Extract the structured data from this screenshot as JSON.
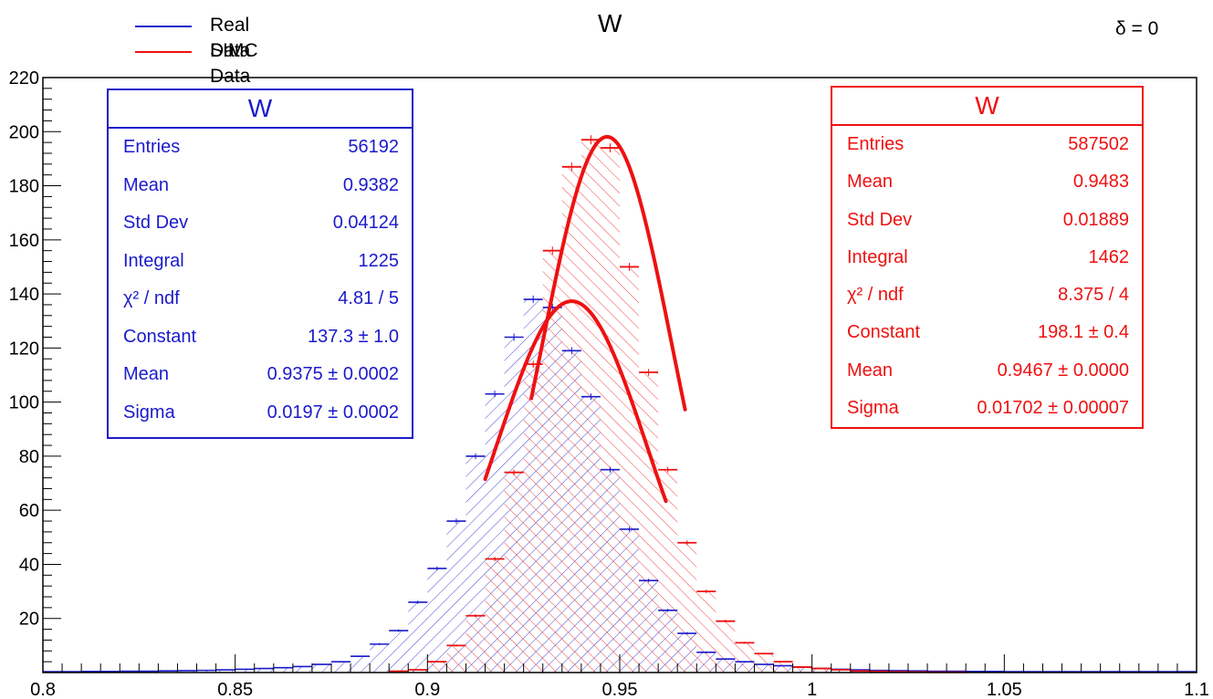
{
  "chart_data": {
    "type": "histogram",
    "title": "W",
    "annotation": "δ = 0",
    "xlim": [
      0.8,
      1.1
    ],
    "ylim": [
      0,
      220
    ],
    "x_ticks": [
      "0.8",
      "0.85",
      "0.9",
      "0.95",
      "1",
      "1.05",
      "1.1"
    ],
    "y_ticks": [
      "20",
      "40",
      "60",
      "80",
      "100",
      "120",
      "140",
      "160",
      "180",
      "200",
      "220"
    ],
    "bin_width": 0.005,
    "legend": [
      {
        "label": "Real Data",
        "color": "#1a1acc"
      },
      {
        "label": "SIMC Data",
        "color": "#ee1111"
      }
    ],
    "series": [
      {
        "name": "Real Data",
        "color": "#1a1acc",
        "bin_centers": [
          0.8025,
          0.8075,
          0.8125,
          0.8175,
          0.8225,
          0.8275,
          0.8325,
          0.8375,
          0.8425,
          0.8475,
          0.8525,
          0.8575,
          0.8625,
          0.8675,
          0.8725,
          0.8775,
          0.8825,
          0.8875,
          0.8925,
          0.8975,
          0.9025,
          0.9075,
          0.9125,
          0.9175,
          0.9225,
          0.9275,
          0.9325,
          0.9375,
          0.9425,
          0.9475,
          0.9525,
          0.9575,
          0.9625,
          0.9675,
          0.9725,
          0.9775,
          0.9825,
          0.9875,
          0.9925,
          0.9975,
          1.0025,
          1.0075,
          1.0125,
          1.0175,
          1.0225,
          1.0275,
          1.0325,
          1.0375,
          1.0425,
          1.0475,
          1.0525,
          1.0575,
          1.0625,
          1.0675,
          1.0725,
          1.0775,
          1.0825,
          1.0875,
          1.0925,
          1.0975
        ],
        "values": [
          0.3,
          0.3,
          0.4,
          0.4,
          0.5,
          0.5,
          0.6,
          0.7,
          0.8,
          1,
          1.2,
          1.5,
          1.8,
          2.2,
          3,
          4,
          6,
          10.5,
          15.5,
          26,
          38.5,
          56,
          80,
          103,
          124,
          138,
          135,
          119,
          102,
          75,
          53,
          34,
          23,
          14.5,
          7.5,
          5,
          4,
          3,
          2.5,
          2,
          1.5,
          1.2,
          1,
          0.8,
          0.7,
          0.6,
          0.5,
          0.5,
          0.4,
          0.4,
          0.3,
          0.3,
          0.3,
          0.3,
          0.3,
          0.3,
          0.3,
          0.3,
          0.3,
          0.3
        ]
      },
      {
        "name": "SIMC Data",
        "color": "#ee1111",
        "bin_centers": [
          0.8925,
          0.8975,
          0.9025,
          0.9075,
          0.9125,
          0.9175,
          0.9225,
          0.9275,
          0.9325,
          0.9375,
          0.9425,
          0.9475,
          0.9525,
          0.9575,
          0.9625,
          0.9675,
          0.9725,
          0.9775,
          0.9825,
          0.9875,
          0.9925,
          0.9975,
          1.0025,
          1.0075,
          1.0125,
          1.0175,
          1.0225,
          1.0275,
          1.0325,
          1.0375
        ],
        "values": [
          0.5,
          1,
          4,
          10,
          21,
          42,
          74,
          114,
          156,
          187,
          197,
          194,
          150,
          111,
          75,
          48,
          30,
          19,
          11,
          7,
          4,
          2,
          1.5,
          1,
          0.6,
          0.4,
          0.3,
          0.2,
          0.1,
          0.1
        ]
      }
    ],
    "fits": [
      {
        "name": "Real Data fit",
        "color": "#ee1111",
        "constant": 137.3,
        "mean": 0.9375,
        "sigma": 0.0197,
        "range": [
          0.915,
          0.962
        ]
      },
      {
        "name": "SIMC Data fit",
        "color": "#ee1111",
        "constant": 198.1,
        "mean": 0.9467,
        "sigma": 0.01702,
        "range": [
          0.927,
          0.967
        ]
      }
    ]
  },
  "stats_real": {
    "title": "W",
    "rows": [
      {
        "key": "Entries",
        "value": "56192"
      },
      {
        "key": "Mean",
        "value": "0.9382"
      },
      {
        "key": "Std Dev",
        "value": "0.04124"
      },
      {
        "key": "Integral",
        "value": "1225"
      },
      {
        "key": "χ² / ndf",
        "value": "4.81 / 5"
      },
      {
        "key": "Constant",
        "value": "137.3 ± 1.0"
      },
      {
        "key": "Mean",
        "value": "0.9375 ± 0.0002"
      },
      {
        "key": "Sigma",
        "value": "0.0197 ± 0.0002"
      }
    ]
  },
  "stats_simc": {
    "title": "W",
    "rows": [
      {
        "key": "Entries",
        "value": "587502"
      },
      {
        "key": "Mean",
        "value": "0.9483"
      },
      {
        "key": "Std Dev",
        "value": "0.01889"
      },
      {
        "key": "Integral",
        "value": "1462"
      },
      {
        "key": "χ² / ndf",
        "value": "8.375 / 4"
      },
      {
        "key": "Constant",
        "value": "198.1 ± 0.4"
      },
      {
        "key": "Mean",
        "value": "0.9467 ± 0.0000"
      },
      {
        "key": "Sigma",
        "value": "0.01702 ± 0.00007"
      }
    ]
  }
}
